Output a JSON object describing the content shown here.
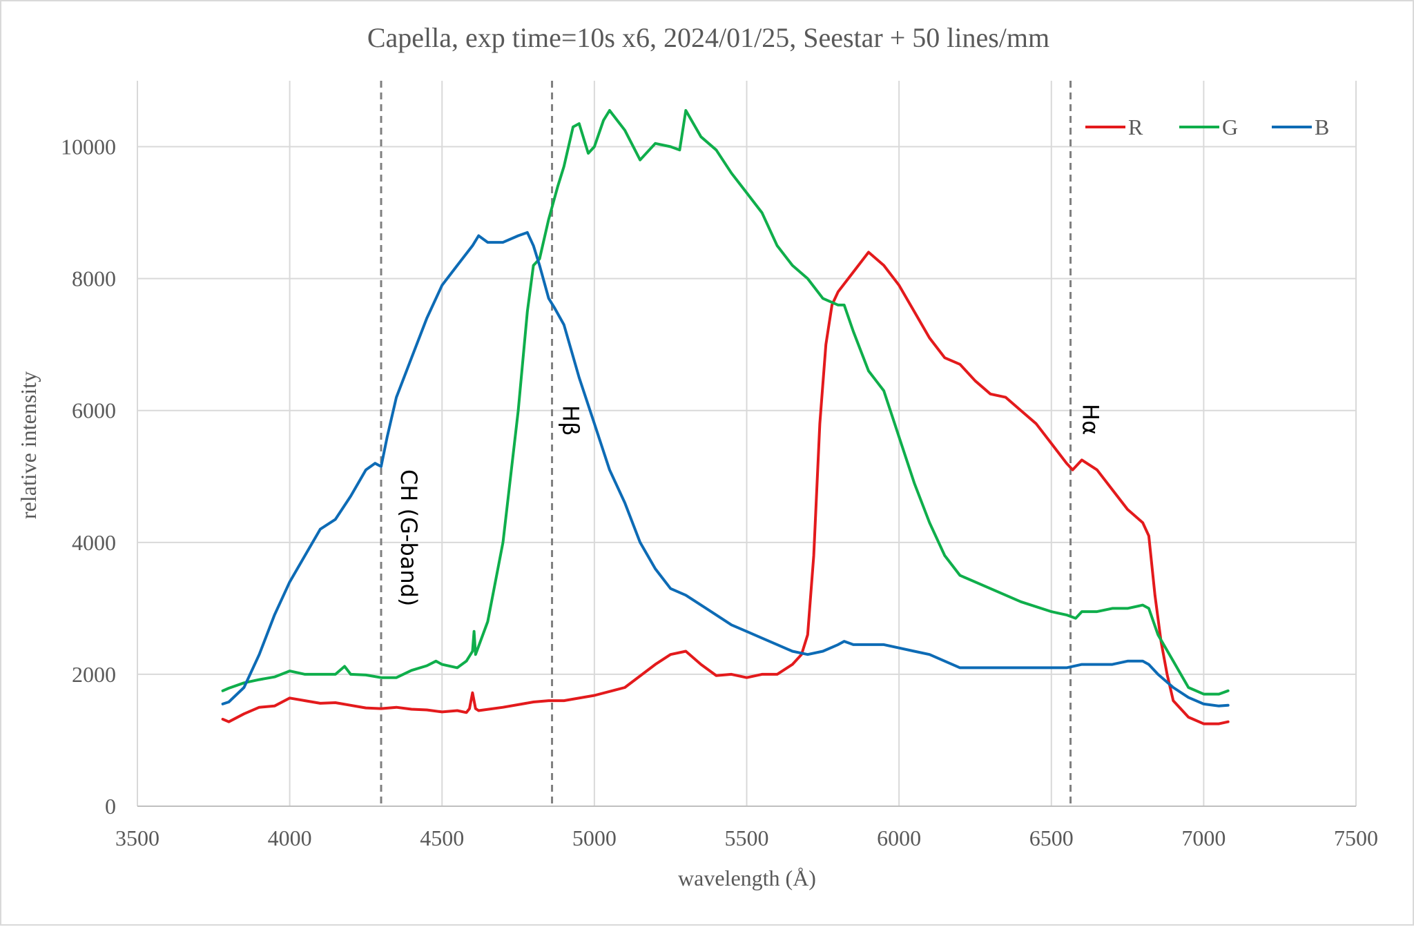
{
  "chart_data": {
    "type": "line",
    "title": "Capella, exp time=10s x6, 2024/01/25, Seestar + 50 lines/mm",
    "xlabel": "wavelength (Å)",
    "ylabel": "relative intensity",
    "xlim": [
      3500,
      7500
    ],
    "ylim": [
      0,
      11000
    ],
    "xticks": [
      3500,
      4000,
      4500,
      5000,
      5500,
      6000,
      6500,
      7000,
      7500
    ],
    "yticks": [
      0,
      2000,
      4000,
      6000,
      8000,
      10000
    ],
    "xtick_labels": [
      "3500",
      "4000",
      "4500",
      "5000",
      "5500",
      "6000",
      "6500",
      "7000",
      "7500"
    ],
    "ytick_labels": [
      "0",
      "2000",
      "4000",
      "6000",
      "8000",
      "10000"
    ],
    "grid": true,
    "legend_position": "top-right",
    "series": [
      {
        "name": "R",
        "color": "#e31a1c",
        "x": [
          3780,
          3800,
          3850,
          3900,
          3950,
          4000,
          4050,
          4100,
          4150,
          4200,
          4250,
          4300,
          4350,
          4400,
          4450,
          4500,
          4550,
          4580,
          4590,
          4600,
          4610,
          4620,
          4700,
          4800,
          4850,
          4900,
          5000,
          5100,
          5200,
          5250,
          5300,
          5350,
          5400,
          5450,
          5500,
          5550,
          5600,
          5650,
          5680,
          5700,
          5720,
          5740,
          5760,
          5780,
          5800,
          5850,
          5900,
          5950,
          6000,
          6050,
          6100,
          6150,
          6200,
          6250,
          6300,
          6350,
          6400,
          6450,
          6500,
          6550,
          6570,
          6600,
          6650,
          6700,
          6750,
          6800,
          6820,
          6840,
          6860,
          6880,
          6900,
          6950,
          7000,
          7050,
          7080
        ],
        "y": [
          1320,
          1280,
          1400,
          1500,
          1520,
          1640,
          1600,
          1560,
          1570,
          1530,
          1490,
          1480,
          1500,
          1470,
          1460,
          1430,
          1450,
          1420,
          1480,
          1720,
          1480,
          1450,
          1500,
          1580,
          1600,
          1600,
          1680,
          1800,
          2150,
          2300,
          2350,
          2150,
          1980,
          2000,
          1950,
          2000,
          2000,
          2150,
          2300,
          2600,
          3800,
          5800,
          7000,
          7600,
          7800,
          8100,
          8400,
          8200,
          7900,
          7500,
          7100,
          6800,
          6700,
          6450,
          6250,
          6200,
          6000,
          5800,
          5500,
          5200,
          5100,
          5250,
          5100,
          4800,
          4500,
          4300,
          4100,
          3200,
          2500,
          2000,
          1600,
          1350,
          1250,
          1250,
          1280
        ]
      },
      {
        "name": "G",
        "color": "#0fae4b",
        "x": [
          3780,
          3800,
          3850,
          3900,
          3950,
          4000,
          4050,
          4100,
          4150,
          4180,
          4200,
          4250,
          4300,
          4350,
          4400,
          4450,
          4480,
          4500,
          4550,
          4580,
          4600,
          4605,
          4610,
          4650,
          4700,
          4750,
          4780,
          4800,
          4820,
          4850,
          4880,
          4900,
          4930,
          4950,
          4980,
          5000,
          5030,
          5050,
          5100,
          5150,
          5200,
          5250,
          5280,
          5300,
          5350,
          5400,
          5450,
          5500,
          5550,
          5600,
          5650,
          5700,
          5750,
          5800,
          5820,
          5850,
          5900,
          5950,
          6000,
          6050,
          6100,
          6150,
          6200,
          6300,
          6400,
          6500,
          6550,
          6580,
          6600,
          6650,
          6700,
          6750,
          6800,
          6820,
          6850,
          6900,
          6950,
          7000,
          7050,
          7080
        ],
        "y": [
          1750,
          1790,
          1870,
          1920,
          1960,
          2050,
          2000,
          2000,
          2000,
          2120,
          2000,
          1990,
          1950,
          1950,
          2060,
          2130,
          2200,
          2150,
          2100,
          2200,
          2350,
          2650,
          2300,
          2800,
          4000,
          6000,
          7500,
          8200,
          8300,
          8900,
          9400,
          9700,
          10300,
          10350,
          9900,
          10000,
          10400,
          10550,
          10250,
          9800,
          10050,
          10000,
          9950,
          10550,
          10150,
          9950,
          9600,
          9300,
          9000,
          8500,
          8200,
          8000,
          7700,
          7600,
          7600,
          7200,
          6600,
          6300,
          5600,
          4900,
          4300,
          3800,
          3500,
          3300,
          3100,
          2950,
          2900,
          2850,
          2950,
          2950,
          3000,
          3000,
          3050,
          3000,
          2600,
          2200,
          1800,
          1700,
          1700,
          1750
        ]
      },
      {
        "name": "B",
        "color": "#0d6bb5",
        "x": [
          3780,
          3800,
          3850,
          3900,
          3950,
          4000,
          4050,
          4100,
          4150,
          4200,
          4250,
          4280,
          4300,
          4320,
          4350,
          4400,
          4450,
          4500,
          4550,
          4600,
          4620,
          4650,
          4700,
          4750,
          4780,
          4800,
          4820,
          4850,
          4870,
          4900,
          4950,
          5000,
          5050,
          5100,
          5150,
          5200,
          5250,
          5300,
          5350,
          5400,
          5450,
          5500,
          5550,
          5600,
          5650,
          5700,
          5750,
          5800,
          5820,
          5850,
          5900,
          5950,
          6000,
          6050,
          6100,
          6150,
          6200,
          6300,
          6400,
          6500,
          6550,
          6600,
          6650,
          6700,
          6750,
          6800,
          6820,
          6850,
          6900,
          6950,
          7000,
          7050,
          7080
        ],
        "y": [
          1550,
          1580,
          1800,
          2300,
          2900,
          3400,
          3800,
          4200,
          4350,
          4700,
          5100,
          5200,
          5150,
          5600,
          6200,
          6800,
          7400,
          7900,
          8200,
          8500,
          8650,
          8550,
          8550,
          8650,
          8700,
          8500,
          8200,
          7700,
          7550,
          7300,
          6500,
          5800,
          5100,
          4600,
          4000,
          3600,
          3300,
          3200,
          3050,
          2900,
          2750,
          2650,
          2550,
          2450,
          2350,
          2300,
          2350,
          2450,
          2500,
          2450,
          2450,
          2450,
          2400,
          2350,
          2300,
          2200,
          2100,
          2100,
          2100,
          2100,
          2100,
          2150,
          2150,
          2150,
          2200,
          2200,
          2150,
          2000,
          1800,
          1650,
          1550,
          1520,
          1530
        ]
      }
    ],
    "annotations": [
      {
        "label": "CH (G-band)",
        "x": 4300,
        "style": "dashed-vertical"
      },
      {
        "label": "Hβ",
        "x": 4861,
        "style": "dashed-vertical"
      },
      {
        "label": "Hα",
        "x": 6563,
        "style": "dashed-vertical"
      }
    ]
  }
}
